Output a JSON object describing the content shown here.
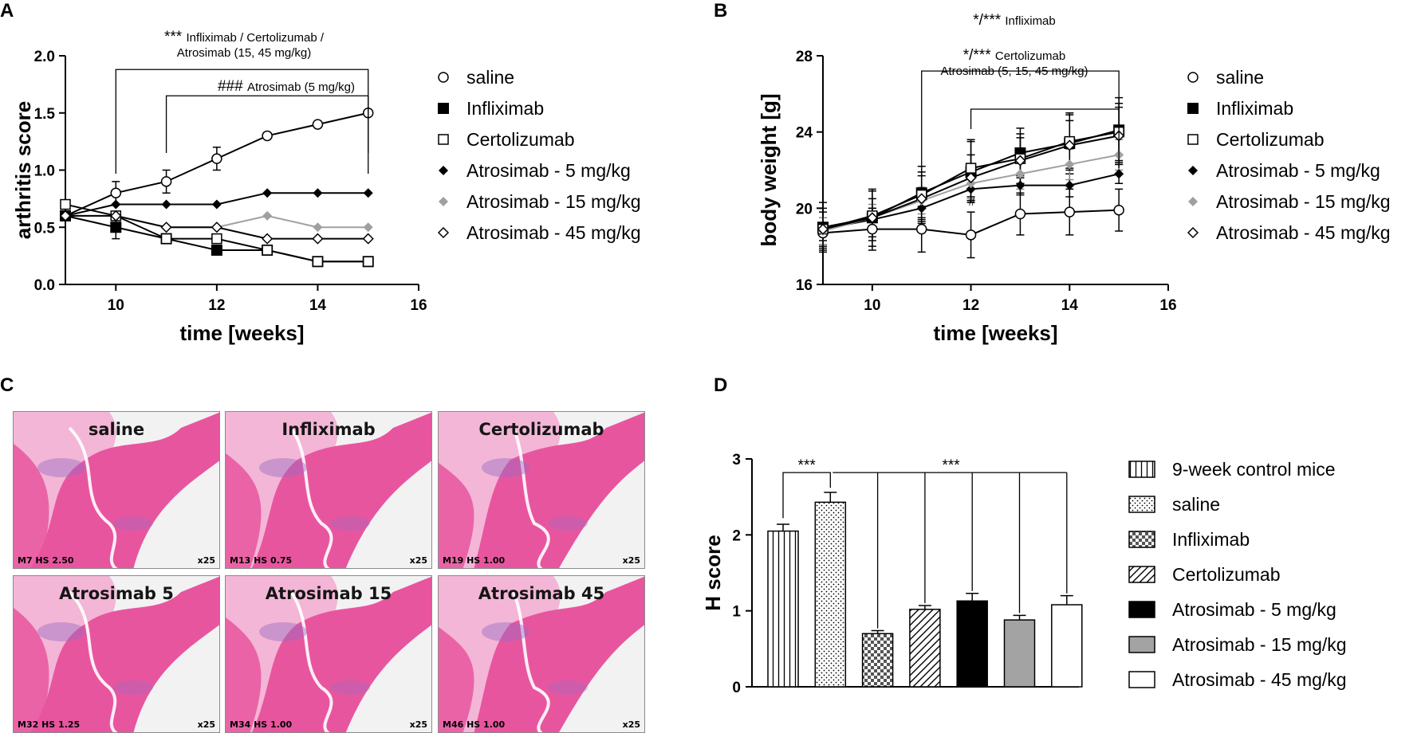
{
  "panels": {
    "A": "A",
    "B": "B",
    "C": "C",
    "D": "D"
  },
  "chart_data": [
    {
      "id": "A",
      "type": "line",
      "xlabel": "time [weeks]",
      "ylabel": "arthritis score",
      "xlim": [
        9,
        16
      ],
      "ylim": [
        0,
        2
      ],
      "xticks": [
        "10",
        "12",
        "14",
        "16"
      ],
      "xtick_values": [
        10,
        12,
        14,
        16
      ],
      "yticks": [
        "0.0",
        "0.5",
        "1.0",
        "1.5",
        "2.0"
      ],
      "ytick_values": [
        0,
        0.5,
        1,
        1.5,
        2
      ],
      "series": [
        {
          "name": "saline",
          "marker": "open-circle",
          "color": "#000000",
          "x": [
            9,
            10,
            11,
            12,
            13,
            14,
            15
          ],
          "y": [
            0.6,
            0.8,
            0.9,
            1.1,
            1.3,
            1.4,
            1.5
          ],
          "err": [
            0.03,
            0.1,
            0.1,
            0.1,
            0,
            0,
            0
          ]
        },
        {
          "name": "Infliximab",
          "marker": "filled-square",
          "color": "#000000",
          "x": [
            9,
            10,
            11,
            12,
            13,
            14,
            15
          ],
          "y": [
            0.6,
            0.5,
            0.4,
            0.3,
            0.3,
            0.2,
            0.2
          ],
          "err": [
            0.03,
            0.1,
            0,
            0,
            0,
            0,
            0
          ]
        },
        {
          "name": "Certolizumab",
          "marker": "open-square",
          "color": "#000000",
          "x": [
            9,
            10,
            11,
            12,
            13,
            14,
            15
          ],
          "y": [
            0.7,
            0.6,
            0.4,
            0.4,
            0.3,
            0.2,
            0.2
          ],
          "err": [
            0.03,
            0,
            0,
            0,
            0,
            0,
            0
          ]
        },
        {
          "name": "Atrosimab - 5 mg/kg",
          "marker": "filled-diamond",
          "color": "#000000",
          "x": [
            9,
            10,
            11,
            12,
            13,
            14,
            15
          ],
          "y": [
            0.6,
            0.7,
            0.7,
            0.7,
            0.8,
            0.8,
            0.8
          ],
          "err": [
            0,
            0,
            0,
            0,
            0,
            0,
            0
          ]
        },
        {
          "name": "Atrosimab - 15 mg/kg",
          "marker": "gray-diamond",
          "color": "#a0a0a0",
          "x": [
            9,
            10,
            11,
            12,
            13,
            14,
            15
          ],
          "y": [
            0.6,
            0.6,
            0.5,
            0.5,
            0.6,
            0.5,
            0.5
          ],
          "err": [
            0,
            0,
            0,
            0,
            0,
            0,
            0
          ]
        },
        {
          "name": "Atrosimab - 45 mg/kg",
          "marker": "open-diamond",
          "color": "#000000",
          "x": [
            9,
            10,
            11,
            12,
            13,
            14,
            15
          ],
          "y": [
            0.6,
            0.6,
            0.5,
            0.5,
            0.4,
            0.4,
            0.4
          ],
          "err": [
            0,
            0,
            0,
            0,
            0,
            0,
            0
          ]
        }
      ],
      "annotations": [
        {
          "stars": "***",
          "text": "Infliximab / Certolizumab /",
          "text2": "Atrosimab (15, 45 mg/kg)",
          "x_from": 10,
          "x_to": 15,
          "y": 1.88
        },
        {
          "stars": "###",
          "text": "Atrosimab (5 mg/kg)",
          "x_from": 11,
          "x_to": 15,
          "y": 1.65
        }
      ]
    },
    {
      "id": "B",
      "type": "line",
      "xlabel": "time [weeks]",
      "ylabel": "body weight [g]",
      "xlim": [
        9,
        16
      ],
      "ylim": [
        16,
        28
      ],
      "xticks": [
        "10",
        "12",
        "14",
        "16"
      ],
      "xtick_values": [
        10,
        12,
        14,
        16
      ],
      "yticks": [
        "16",
        "20",
        "24",
        "28"
      ],
      "ytick_values": [
        16,
        20,
        24,
        28
      ],
      "series": [
        {
          "name": "saline",
          "marker": "open-circle",
          "color": "#000000",
          "x": [
            9,
            10,
            11,
            12,
            13,
            14,
            15
          ],
          "y": [
            18.7,
            18.9,
            18.9,
            18.6,
            19.7,
            19.8,
            19.9
          ],
          "err": [
            0.8,
            1.1,
            1.2,
            1.2,
            1.1,
            1.2,
            1.1
          ]
        },
        {
          "name": "Infliximab",
          "marker": "filled-square",
          "color": "#000000",
          "x": [
            9,
            10,
            11,
            12,
            13,
            14,
            15
          ],
          "y": [
            19.0,
            19.5,
            20.8,
            21.9,
            22.9,
            23.4,
            24.1
          ],
          "err": [
            1.3,
            1.5,
            1.4,
            1.6,
            1.3,
            1.6,
            1.7
          ]
        },
        {
          "name": "Certolizumab",
          "marker": "open-square",
          "color": "#000000",
          "x": [
            9,
            10,
            11,
            12,
            13,
            14,
            15
          ],
          "y": [
            18.9,
            19.6,
            20.7,
            22.1,
            22.6,
            23.5,
            24.0
          ],
          "err": [
            1.1,
            1.3,
            1.2,
            1.5,
            1.3,
            1.4,
            1.5
          ]
        },
        {
          "name": "Atrosimab - 5 mg/kg",
          "marker": "filled-diamond",
          "color": "#000000",
          "x": [
            9,
            10,
            11,
            12,
            13,
            14,
            15
          ],
          "y": [
            18.9,
            19.4,
            20.0,
            21.0,
            21.2,
            21.2,
            21.8
          ],
          "err": [
            0.6,
            0.6,
            0.8,
            0.6,
            0.5,
            0.6,
            0.5
          ]
        },
        {
          "name": "Atrosimab - 15 mg/kg",
          "marker": "gray-diamond",
          "color": "#a0a0a0",
          "x": [
            9,
            10,
            11,
            12,
            13,
            14,
            15
          ],
          "y": [
            18.8,
            19.5,
            20.4,
            21.3,
            21.8,
            22.3,
            22.8
          ],
          "err": [
            0.7,
            0.7,
            0.7,
            0.8,
            0.8,
            0.8,
            0.8
          ]
        },
        {
          "name": "Atrosimab - 45 mg/kg",
          "marker": "open-diamond",
          "color": "#000000",
          "x": [
            9,
            10,
            11,
            12,
            13,
            14,
            15
          ],
          "y": [
            18.9,
            19.5,
            20.5,
            21.6,
            22.5,
            23.3,
            23.8
          ],
          "err": [
            0.9,
            1.0,
            1.2,
            1.2,
            1.2,
            1.3,
            1.5
          ]
        }
      ],
      "annotations": [
        {
          "stars": "*/***",
          "text": "Infliximab",
          "x_from": 11,
          "x_to": 15,
          "y": 27.2
        },
        {
          "stars": "*/***",
          "text": "Certolizumab",
          "text2": "Atrosimab (5, 15, 45 mg/kg)",
          "x_from": 12,
          "x_to": 15,
          "y": 25.2
        }
      ],
      "point_labels": [
        {
          "text": "#",
          "x": 12,
          "y": 20.3
        }
      ]
    },
    {
      "id": "D",
      "type": "bar",
      "ylabel": "H score",
      "ylim": [
        0,
        3
      ],
      "yticks": [
        "0",
        "1",
        "2",
        "3"
      ],
      "ytick_values": [
        0,
        1,
        2,
        3
      ],
      "categories": [
        "9-week control mice",
        "saline",
        "Infliximab",
        "Certolizumab",
        "Atrosimab - 5 mg/kg",
        "Atrosimab - 15 mg/kg",
        "Atrosimab - 45 mg/kg"
      ],
      "values": [
        2.05,
        2.43,
        0.7,
        1.02,
        1.13,
        0.88,
        1.08
      ],
      "errors": [
        0.09,
        0.13,
        0.04,
        0.05,
        0.1,
        0.06,
        0.12
      ],
      "fills": [
        "vlines",
        "dots",
        "checker",
        "diag",
        "black",
        "gray",
        "white"
      ],
      "significance": [
        {
          "stars": "***",
          "from": 0,
          "to": 1,
          "y": 2.82
        },
        {
          "stars": "***",
          "from": 1,
          "to": [
            2,
            3,
            4,
            5,
            6
          ],
          "y": 2.82
        }
      ]
    }
  ],
  "histology": [
    {
      "title": "saline",
      "caption": "M7 HS 2.50",
      "mag": "x25"
    },
    {
      "title": "Infliximab",
      "caption": "M13 HS 0.75",
      "mag": "x25"
    },
    {
      "title": "Certolizumab",
      "caption": "M19 HS 1.00",
      "mag": "x25"
    },
    {
      "title": "Atrosimab 5",
      "caption": "M32 HS 1.25",
      "mag": "x25"
    },
    {
      "title": "Atrosimab 15",
      "caption": "M34 HS 1.00",
      "mag": "x25"
    },
    {
      "title": "Atrosimab 45",
      "caption": "M46 HS 1.00",
      "mag": "x25"
    }
  ],
  "colors": {
    "tissue_pink": "#e8559f",
    "tissue_light": "#f3b6d6",
    "stain_purple": "#9a6cc3",
    "background_gray": "#f2f2f2",
    "bar_gray": "#a3a3a3"
  }
}
